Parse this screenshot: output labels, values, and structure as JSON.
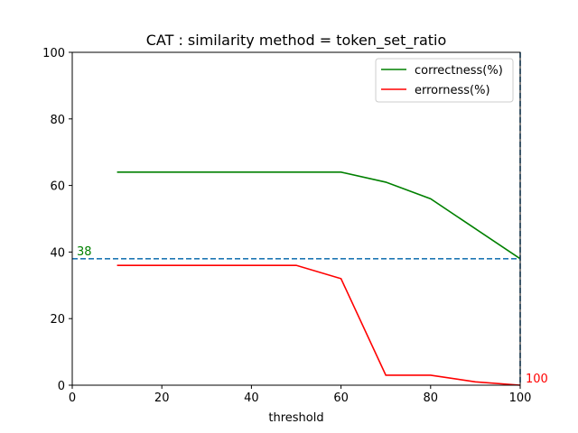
{
  "chart_data": {
    "type": "line",
    "title": "CAT : similarity method = token_set_ratio",
    "xlabel": "threshold",
    "ylabel": "",
    "xlim": [
      0,
      100
    ],
    "ylim": [
      0,
      100
    ],
    "x_ticks": [
      "0",
      "20",
      "40",
      "60",
      "80",
      "100"
    ],
    "y_ticks": [
      "0",
      "20",
      "40",
      "60",
      "80",
      "100"
    ],
    "x": [
      10,
      20,
      30,
      40,
      50,
      60,
      70,
      80,
      90,
      100
    ],
    "series": [
      {
        "name": "correctness(%)",
        "color": "#008000",
        "values": [
          64,
          64,
          64,
          64,
          64,
          64,
          61,
          56,
          47,
          38
        ]
      },
      {
        "name": "errorness(%)",
        "color": "#ff0000",
        "values": [
          36,
          36,
          36,
          36,
          36,
          32,
          3,
          3,
          1,
          0
        ]
      }
    ],
    "reference_lines": [
      {
        "orientation": "horizontal",
        "value": 38,
        "style": "dashed",
        "color": "#1f77b4"
      },
      {
        "orientation": "vertical",
        "value": 100,
        "style": "dashed",
        "color": "#1f77b4"
      }
    ],
    "annotations": [
      {
        "text": "38",
        "x": 0,
        "y": 38,
        "color": "#008000"
      },
      {
        "text": "100",
        "x": 100,
        "y": 0,
        "color": "#ff0000"
      }
    ],
    "legend_placement": "top-right",
    "grid": false
  }
}
